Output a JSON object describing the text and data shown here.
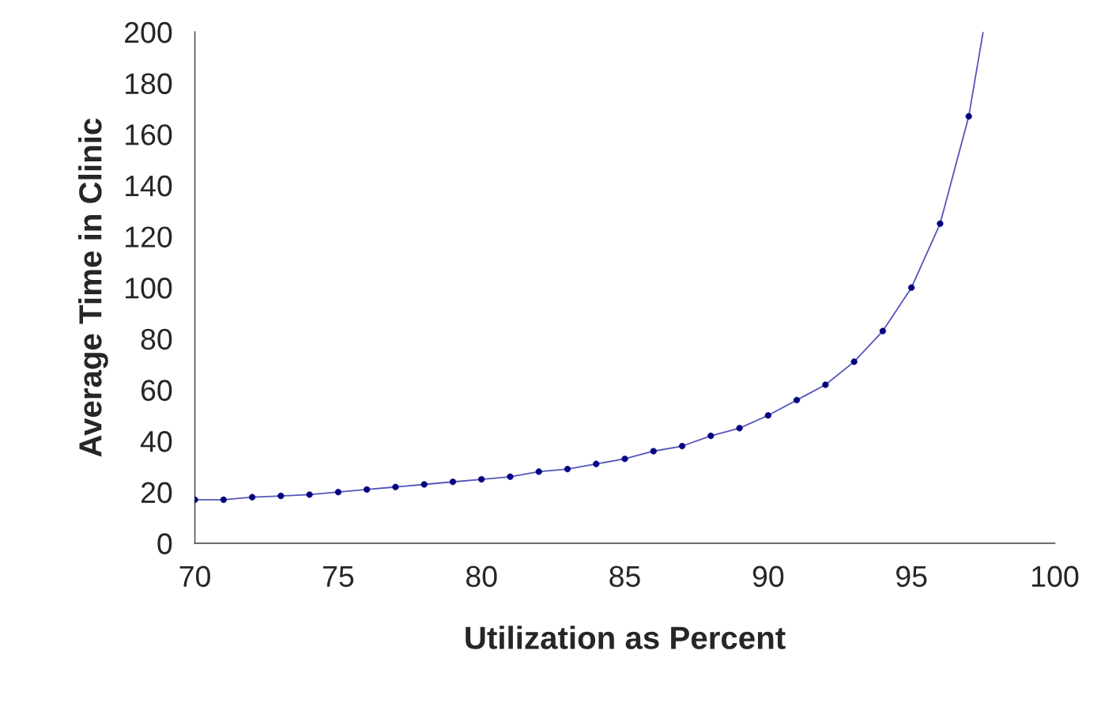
{
  "chart_data": {
    "type": "line",
    "xlabel": "Utilization as Percent",
    "ylabel": "Average Time in Clinic",
    "xlim": [
      70,
      100
    ],
    "xticks": [
      70,
      75,
      80,
      85,
      90,
      95,
      100
    ],
    "ylim": [
      0,
      200
    ],
    "yticks": [
      0,
      20,
      40,
      60,
      80,
      100,
      120,
      140,
      160,
      180,
      200
    ],
    "grid": false,
    "legend": false,
    "series": [
      {
        "color": "#5555bb",
        "marker": "none",
        "x": [
          70,
          71,
          72,
          73,
          74,
          75,
          76,
          77,
          78,
          79,
          80,
          81,
          82,
          83,
          84,
          85,
          86,
          87,
          88,
          89,
          90,
          91,
          92,
          93,
          94,
          95,
          96,
          97,
          97.5
        ],
        "values": [
          17,
          17,
          18,
          18.5,
          19,
          20,
          21,
          22,
          23,
          24,
          25,
          26,
          28,
          29,
          31,
          33,
          36,
          38,
          42,
          45,
          50,
          56,
          62,
          71,
          83,
          100,
          125,
          167,
          200
        ]
      },
      {
        "type": "scatter",
        "color": "#000080",
        "marker": "circle",
        "x": [
          70,
          71,
          72,
          73,
          74,
          75,
          76,
          77,
          78,
          79,
          80,
          81,
          82,
          83,
          84,
          85,
          86,
          87,
          88,
          89,
          90,
          91,
          92,
          93,
          94,
          95,
          96,
          97
        ],
        "values": [
          17,
          17,
          18,
          18.5,
          19,
          20,
          21,
          22,
          23,
          24,
          25,
          26,
          28,
          29,
          31,
          33,
          36,
          38,
          42,
          45,
          50,
          56,
          62,
          71,
          83,
          100,
          125,
          167
        ]
      }
    ]
  }
}
